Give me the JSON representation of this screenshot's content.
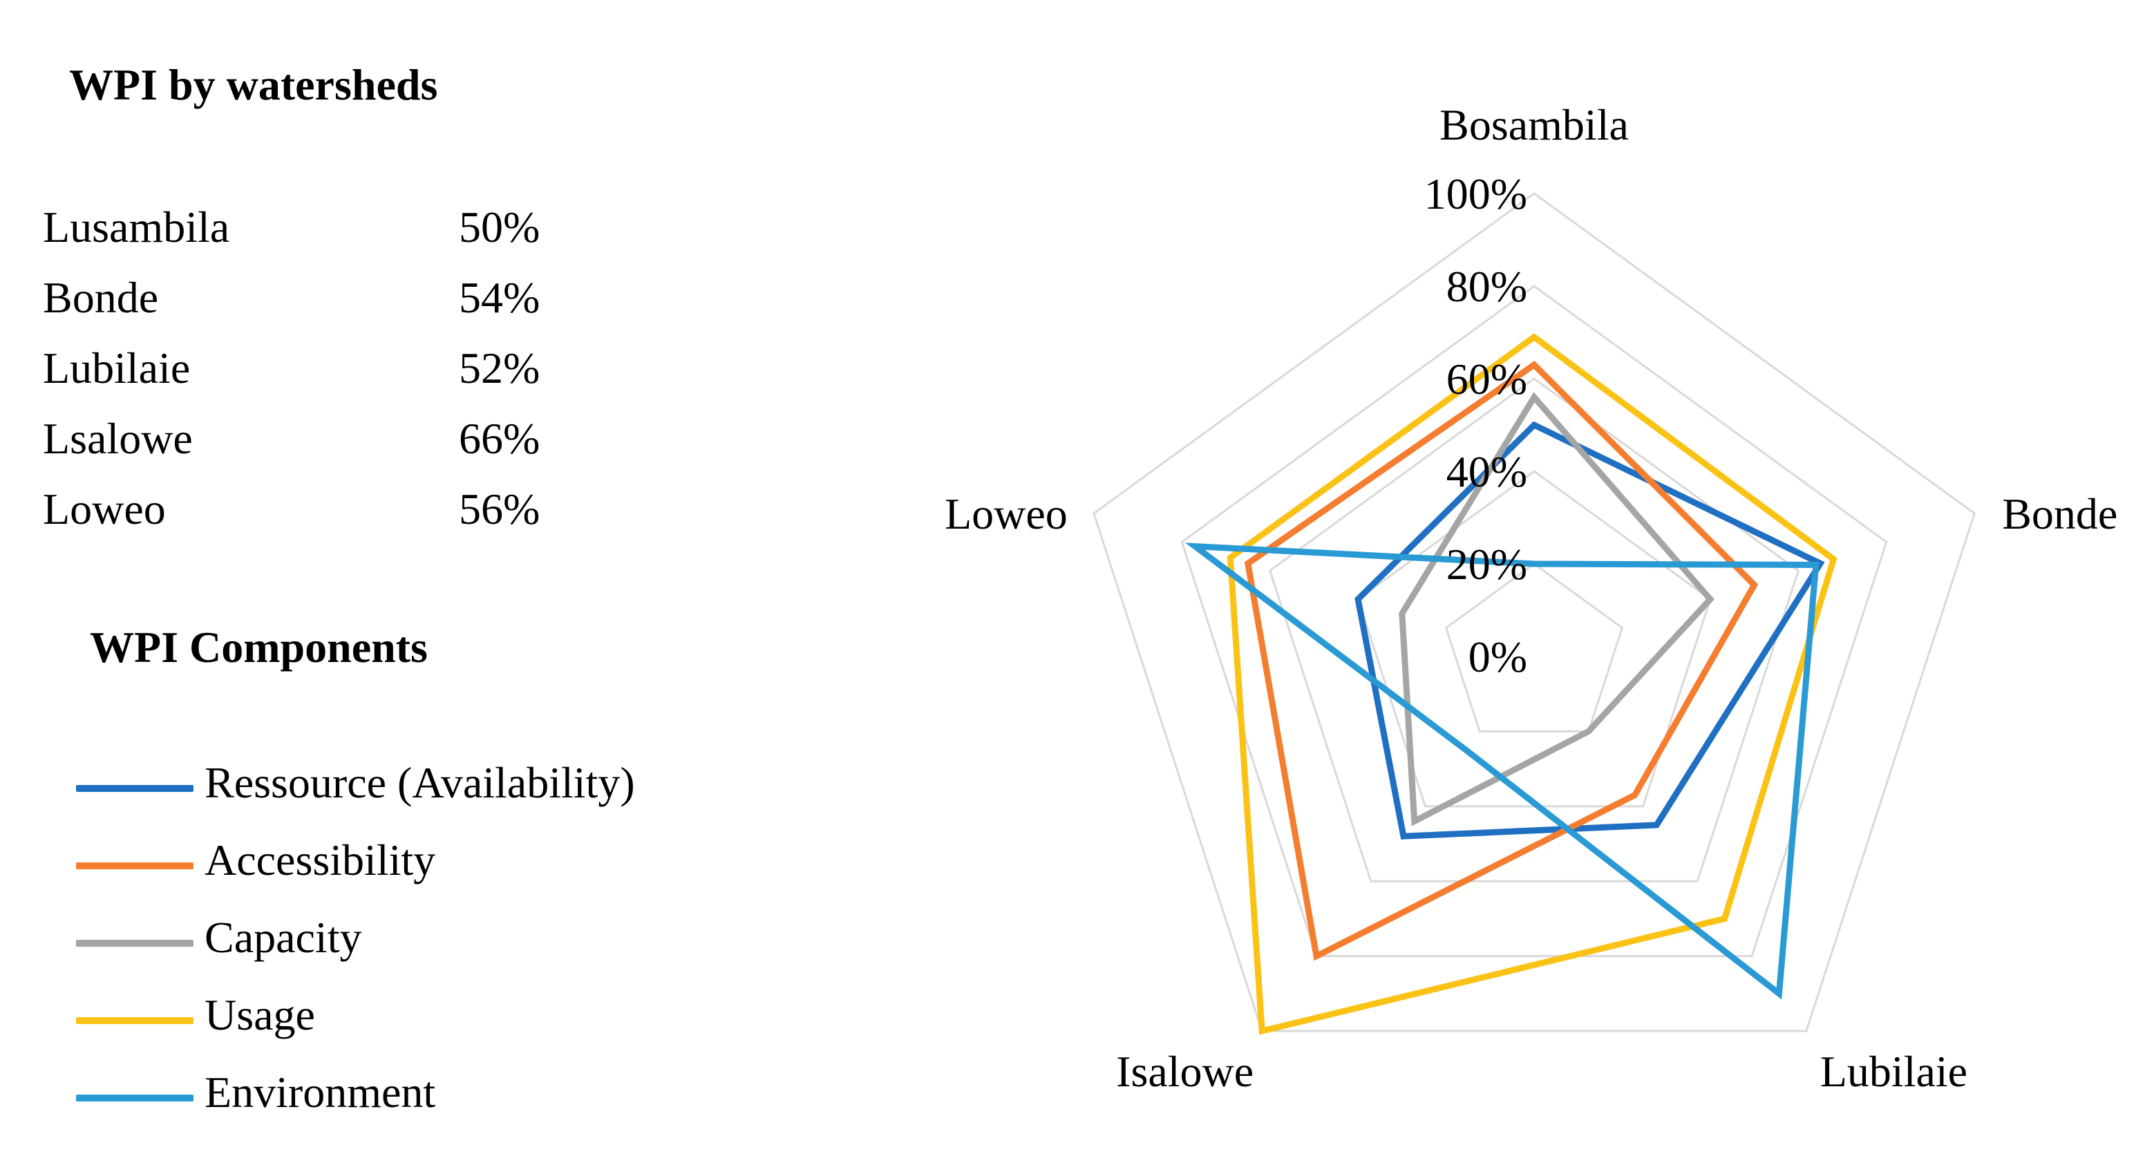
{
  "watersheds": {
    "title": "WPI by watersheds",
    "rows": [
      {
        "name": "Lusambila",
        "value": "50%"
      },
      {
        "name": "Bonde",
        "value": "54%"
      },
      {
        "name": "Lubilaie",
        "value": "52%"
      },
      {
        "name": "Lsalowe",
        "value": "66%"
      },
      {
        "name": "Loweo",
        "value": "56%"
      }
    ]
  },
  "components": {
    "title": "WPI Components"
  },
  "chart_data": {
    "type": "radar",
    "categories": [
      "Bosambila",
      "Bonde",
      "Lubilaie",
      "Isalowe",
      "Loweo"
    ],
    "ticks": [
      "0%",
      "20%",
      "40%",
      "60%",
      "80%",
      "100%"
    ],
    "range": [
      0,
      100
    ],
    "series": [
      {
        "name": "Ressource (Availability)",
        "color": "#1f6fc2",
        "values": [
          50,
          65,
          45,
          48,
          40
        ]
      },
      {
        "name": "Accessibility",
        "color": "#f47d30",
        "values": [
          63,
          50,
          37,
          80,
          65
        ]
      },
      {
        "name": "Capacity",
        "color": "#a5a5a5",
        "values": [
          56,
          40,
          20,
          44,
          30
        ]
      },
      {
        "name": "Usage",
        "color": "#fbc216",
        "values": [
          69,
          68,
          70,
          100,
          69
        ]
      },
      {
        "name": "Environment",
        "color": "#2a9ad4",
        "values": [
          20,
          64,
          90,
          25,
          77
        ]
      }
    ]
  }
}
